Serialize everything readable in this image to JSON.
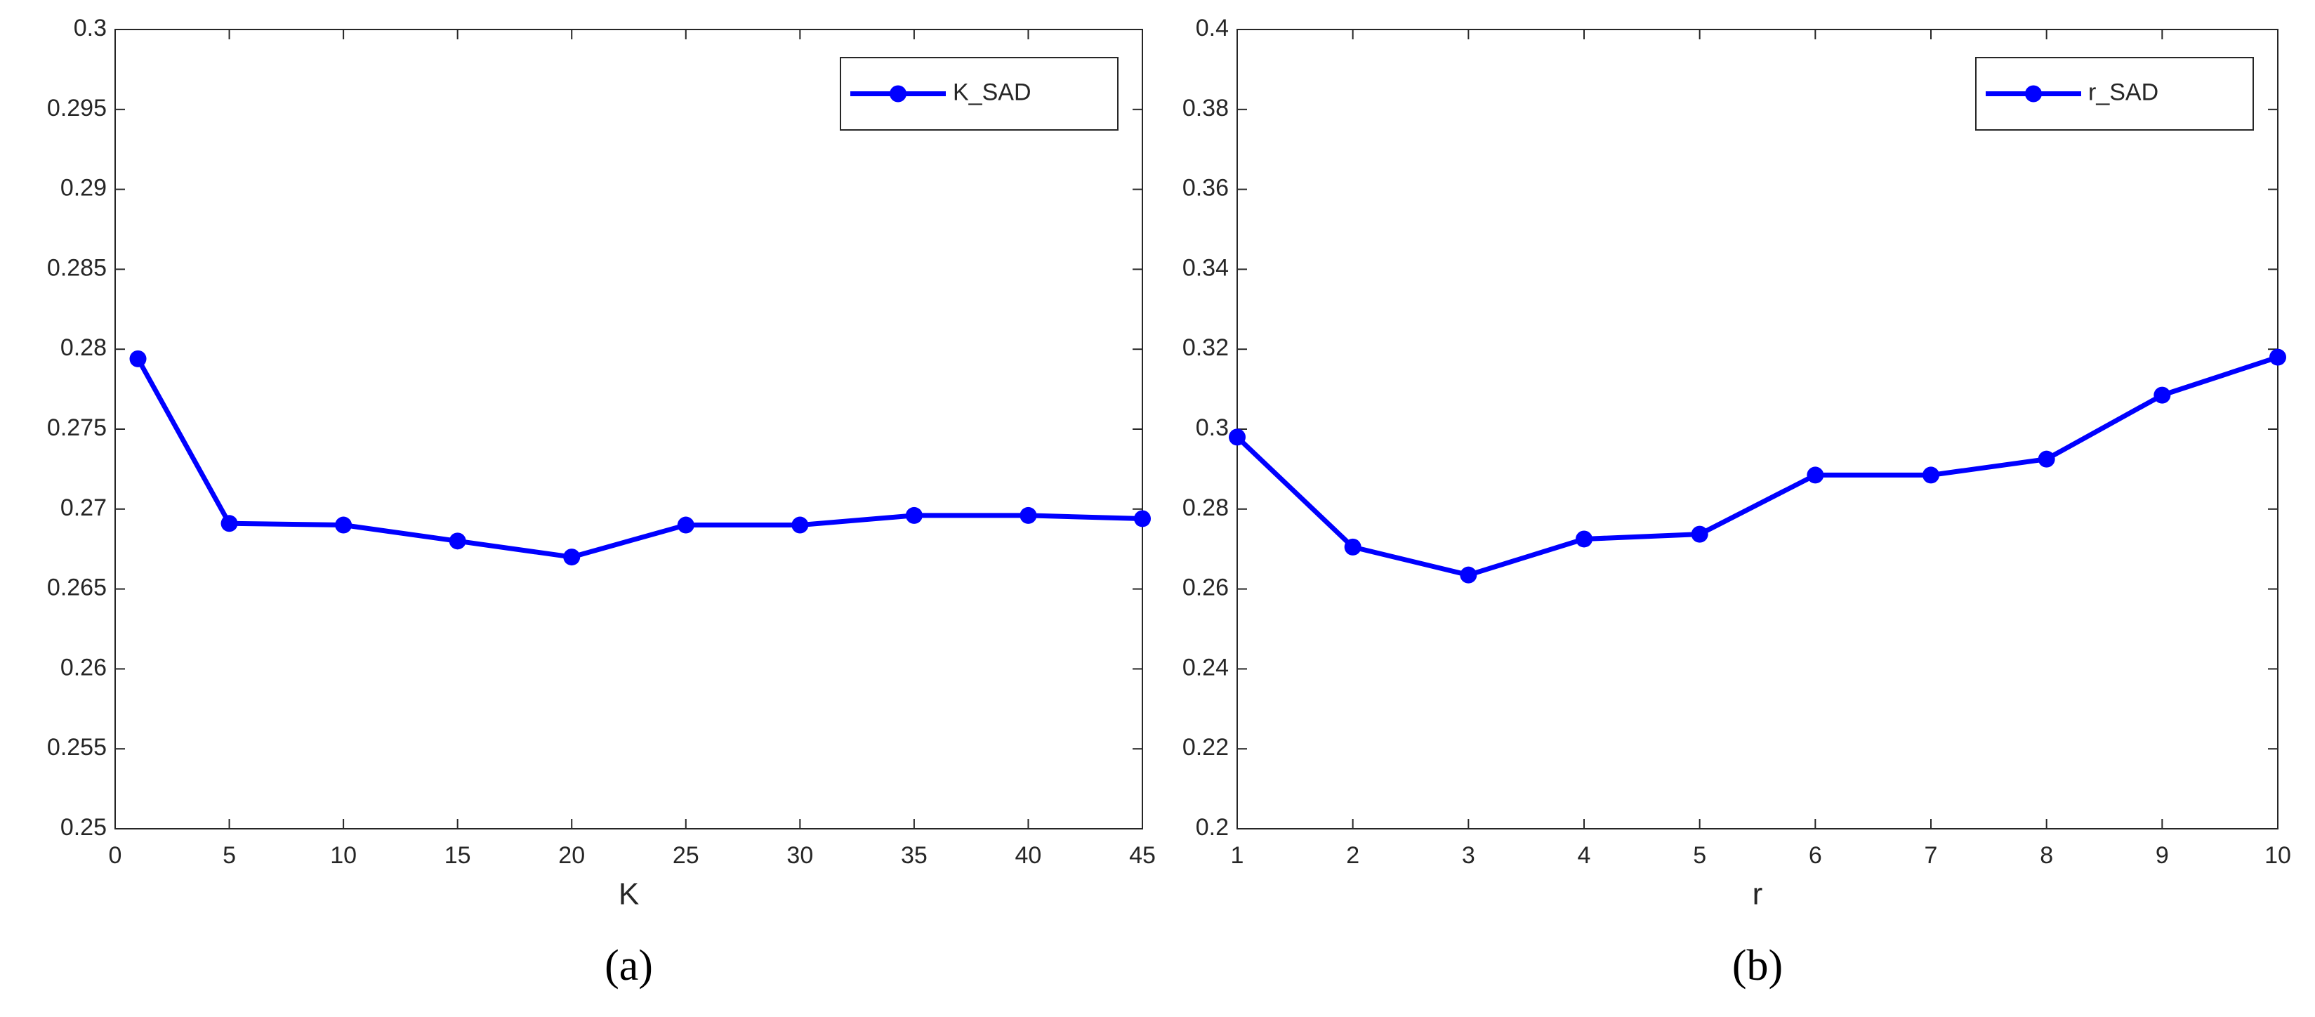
{
  "chart_data": [
    {
      "type": "line",
      "caption": "(a)",
      "xlabel": "K",
      "x": [
        1,
        5,
        10,
        15,
        20,
        25,
        30,
        35,
        40,
        45
      ],
      "series": [
        {
          "name": "K_SAD",
          "color": "#0000ff",
          "values": [
            0.2794,
            0.2691,
            0.269,
            0.268,
            0.267,
            0.269,
            0.269,
            0.2696,
            0.2696,
            0.2694
          ]
        }
      ],
      "xlim": [
        0,
        45
      ],
      "xticks": [
        0,
        5,
        10,
        15,
        20,
        25,
        30,
        35,
        40,
        45
      ],
      "ylim": [
        0.25,
        0.3
      ],
      "yticks": [
        0.25,
        0.255,
        0.26,
        0.265,
        0.27,
        0.275,
        0.28,
        0.285,
        0.29,
        0.295,
        0.3
      ],
      "grid": false,
      "legend": "northeast"
    },
    {
      "type": "line",
      "caption": "(b)",
      "xlabel": "r",
      "x": [
        1,
        2,
        3,
        4,
        5,
        6,
        7,
        8,
        9,
        10
      ],
      "series": [
        {
          "name": "r_SAD",
          "color": "#0000ff",
          "values": [
            0.298,
            0.2705,
            0.2635,
            0.2725,
            0.2737,
            0.2885,
            0.2885,
            0.2925,
            0.3085,
            0.318
          ]
        }
      ],
      "xlim": [
        1,
        10
      ],
      "xticks": [
        1,
        2,
        3,
        4,
        5,
        6,
        7,
        8,
        9,
        10
      ],
      "ylim": [
        0.2,
        0.4
      ],
      "yticks": [
        0.2,
        0.22,
        0.24,
        0.26,
        0.28,
        0.3,
        0.32,
        0.34,
        0.36,
        0.38,
        0.4
      ],
      "grid": false,
      "legend": "northeast"
    }
  ]
}
